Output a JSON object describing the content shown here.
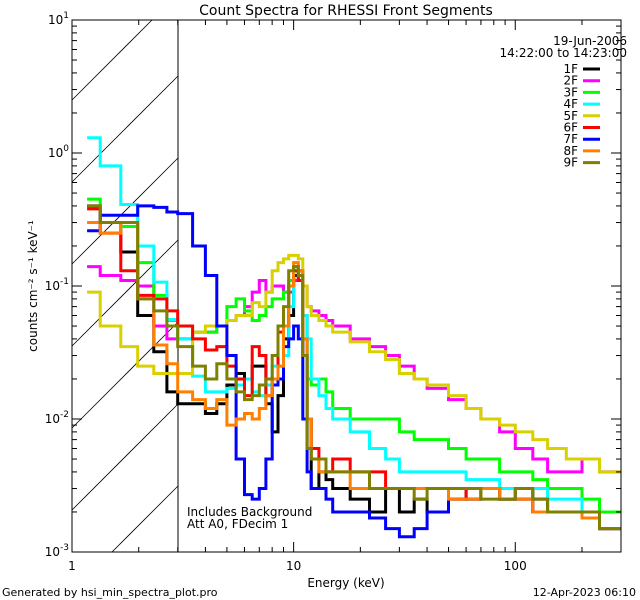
{
  "chart_data": {
    "type": "line",
    "title": "Count Spectra for RHESSI Front Segments",
    "xlabel": "Energy (keV)",
    "ylabel": "counts cm⁻² s⁻¹ keV⁻¹",
    "xscale": "log",
    "yscale": "log",
    "xlim": [
      1,
      300
    ],
    "ylim": [
      0.001,
      10
    ],
    "x_tick_labels": [
      "1",
      "10",
      "100"
    ],
    "x_ticks": [
      1,
      10,
      100
    ],
    "y_tick_labels": [
      {
        "base": "10",
        "exp": "1",
        "value": 10
      },
      {
        "base": "10",
        "exp": "0",
        "value": 1
      },
      {
        "base": "10",
        "exp": "-1",
        "value": 0.1
      },
      {
        "base": "10",
        "exp": "-2",
        "value": 0.01
      },
      {
        "base": "10",
        "exp": "-3",
        "value": 0.001
      }
    ],
    "shaded_region_keV": [
      1,
      3
    ],
    "legend_position": "top-right",
    "legend_header": [
      "19-Jun-2006",
      "14:22:00 to 14:23:00"
    ],
    "annotations": [
      "Includes Background",
      "Att A0, FDecim 1"
    ],
    "draw_style": "histogram-step",
    "bin_edges_keV": [
      1.17,
      1.34,
      1.66,
      1.98,
      2.34,
      2.68,
      3.0,
      3.5,
      4,
      4.5,
      5,
      5.5,
      6,
      6.5,
      7,
      7.5,
      8,
      8.5,
      9,
      9.5,
      10,
      10.5,
      11,
      11.5,
      12,
      13,
      14,
      15,
      18,
      22,
      26,
      30,
      35,
      40,
      50,
      60,
      70,
      85,
      100,
      120,
      140,
      170,
      200,
      240,
      300
    ],
    "series": [
      {
        "name": "1F",
        "color": "#000000",
        "values": [
          0.4,
          0.3,
          0.18,
          0.06,
          0.032,
          0.016,
          0.013,
          0.013,
          0.011,
          0.013,
          0.018,
          0.022,
          0.02,
          0.025,
          0.025,
          0.013,
          0.008,
          0.015,
          0.04,
          0.06,
          0.12,
          0.13,
          0.06,
          0.01,
          0.003,
          0.004,
          0.0035,
          0.003,
          0.0025,
          0.002,
          0.003,
          0.002,
          0.0025,
          0.002,
          0.003,
          0.0025,
          0.003,
          0.0025,
          0.003,
          0.0025,
          0.002,
          0.002,
          0.0018,
          0.0015
        ]
      },
      {
        "name": "2F",
        "color": "#ff00ff",
        "values": [
          0.14,
          0.12,
          0.11,
          0.1,
          0.05,
          0.04,
          0.04,
          0.045,
          0.045,
          0.05,
          0.055,
          0.06,
          0.07,
          0.09,
          0.11,
          0.09,
          0.1,
          0.1,
          0.09,
          0.09,
          0.11,
          0.12,
          0.1,
          0.07,
          0.065,
          0.06,
          0.055,
          0.05,
          0.04,
          0.035,
          0.03,
          0.025,
          0.02,
          0.017,
          0.014,
          0.012,
          0.01,
          0.008,
          0.006,
          0.005,
          0.004,
          0.004,
          0.005,
          0.004
        ]
      },
      {
        "name": "3F",
        "color": "#00ff00",
        "values": [
          0.45,
          0.3,
          0.28,
          0.15,
          0.085,
          0.055,
          0.04,
          0.045,
          0.045,
          0.05,
          0.07,
          0.08,
          0.065,
          0.055,
          0.06,
          0.07,
          0.08,
          0.08,
          0.09,
          0.11,
          0.13,
          0.12,
          0.04,
          0.02,
          0.018,
          0.02,
          0.016,
          0.012,
          0.01,
          0.01,
          0.01,
          0.008,
          0.007,
          0.007,
          0.006,
          0.005,
          0.005,
          0.004,
          0.004,
          0.0035,
          0.003,
          0.003,
          0.0025,
          0.002
        ]
      },
      {
        "name": "4F",
        "color": "#00ffff",
        "values": [
          1.3,
          0.8,
          0.41,
          0.2,
          0.107,
          0.056,
          0.04,
          0.021,
          0.016,
          0.016,
          0.017,
          0.018,
          0.02,
          0.016,
          0.015,
          0.018,
          0.025,
          0.02,
          0.03,
          0.07,
          0.14,
          0.12,
          0.06,
          0.04,
          0.02,
          0.015,
          0.012,
          0.01,
          0.008,
          0.006,
          0.005,
          0.004,
          0.004,
          0.004,
          0.004,
          0.0035,
          0.0035,
          0.003,
          0.003,
          0.003,
          0.0025,
          0.0025,
          0.002,
          0.0015
        ]
      },
      {
        "name": "5F",
        "color": "#d8d000",
        "values": [
          0.09,
          0.05,
          0.035,
          0.025,
          0.022,
          0.022,
          0.022,
          0.045,
          0.05,
          0.05,
          0.055,
          0.06,
          0.06,
          0.075,
          0.07,
          0.09,
          0.13,
          0.15,
          0.16,
          0.17,
          0.17,
          0.16,
          0.1,
          0.07,
          0.06,
          0.055,
          0.05,
          0.045,
          0.038,
          0.032,
          0.028,
          0.022,
          0.02,
          0.018,
          0.015,
          0.012,
          0.01,
          0.009,
          0.008,
          0.007,
          0.006,
          0.005,
          0.005,
          0.004
        ]
      },
      {
        "name": "6F",
        "color": "#ff0000",
        "values": [
          0.38,
          0.25,
          0.13,
          0.085,
          0.08,
          0.065,
          0.05,
          0.04,
          0.033,
          0.035,
          0.025,
          0.02,
          0.015,
          0.035,
          0.03,
          0.015,
          0.02,
          0.045,
          0.05,
          0.1,
          0.13,
          0.11,
          0.03,
          0.01,
          0.006,
          0.005,
          0.004,
          0.005,
          0.004,
          0.004,
          0.003,
          0.003,
          0.003,
          0.003,
          0.0025,
          0.003,
          0.003,
          0.0025,
          0.0025,
          0.002,
          0.002,
          0.002,
          0.0018,
          0.0015
        ]
      },
      {
        "name": "7F",
        "color": "#0000ff",
        "values": [
          0.26,
          0.34,
          0.34,
          0.4,
          0.39,
          0.36,
          0.35,
          0.2,
          0.12,
          0.05,
          0.03,
          0.005,
          0.0027,
          0.0025,
          0.003,
          0.005,
          0.018,
          0.02,
          0.035,
          0.04,
          0.05,
          0.04,
          0.01,
          0.004,
          0.003,
          0.003,
          0.0025,
          0.002,
          0.002,
          0.0018,
          0.0015,
          0.0013,
          0.0015,
          0.002,
          0.0025,
          0.0025,
          0.003,
          0.0025,
          0.0025,
          0.002,
          0.002,
          0.002,
          0.0018,
          0.0015
        ]
      },
      {
        "name": "8F",
        "color": "#ff8000",
        "values": [
          0.3,
          0.25,
          0.3,
          0.08,
          0.036,
          0.026,
          0.016,
          0.014,
          0.012,
          0.014,
          0.009,
          0.01,
          0.011,
          0.01,
          0.012,
          0.015,
          0.02,
          0.025,
          0.05,
          0.1,
          0.15,
          0.13,
          0.04,
          0.01,
          0.005,
          0.004,
          0.004,
          0.004,
          0.003,
          0.003,
          0.003,
          0.003,
          0.003,
          0.003,
          0.0025,
          0.0025,
          0.003,
          0.0025,
          0.0025,
          0.002,
          0.002,
          0.002,
          0.0018,
          0.0015
        ]
      },
      {
        "name": "9F",
        "color": "#808000",
        "values": [
          0.4,
          0.3,
          0.3,
          0.08,
          0.065,
          0.05,
          0.035,
          0.025,
          0.02,
          0.026,
          0.02,
          0.016,
          0.014,
          0.015,
          0.018,
          0.02,
          0.03,
          0.05,
          0.07,
          0.13,
          0.14,
          0.12,
          0.03,
          0.006,
          0.005,
          0.005,
          0.004,
          0.004,
          0.004,
          0.003,
          0.003,
          0.003,
          0.0025,
          0.003,
          0.003,
          0.003,
          0.0025,
          0.0025,
          0.003,
          0.0025,
          0.002,
          0.002,
          0.002,
          0.0015
        ]
      }
    ]
  },
  "footer": {
    "generated_by": "Generated by hsi_min_spectra_plot.pro",
    "timestamp": "12-Apr-2023 06:10"
  }
}
